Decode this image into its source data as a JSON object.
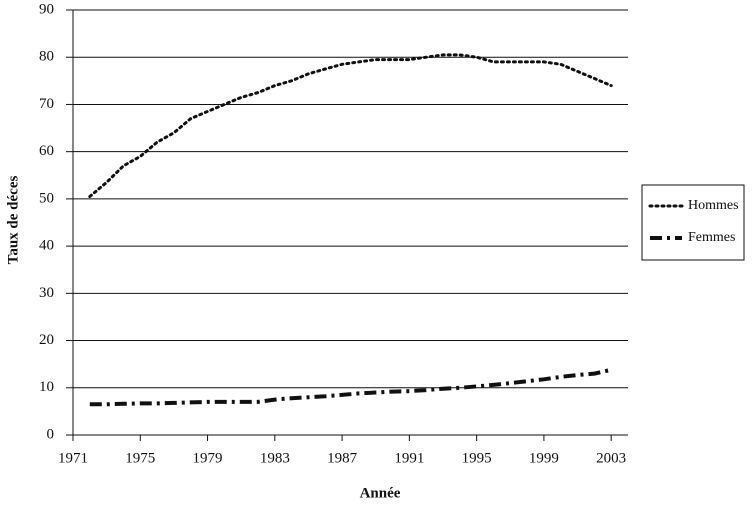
{
  "chart_data": {
    "type": "line",
    "x_label": "Année",
    "y_label": "Taux de déces",
    "x": [
      1972,
      1973,
      1974,
      1975,
      1976,
      1977,
      1978,
      1979,
      1980,
      1981,
      1982,
      1983,
      1984,
      1985,
      1986,
      1987,
      1988,
      1989,
      1990,
      1991,
      1992,
      1993,
      1994,
      1995,
      1996,
      1997,
      1998,
      1999,
      2000,
      2001,
      2002,
      2003
    ],
    "series": [
      {
        "name": "Hommes",
        "color": "#111111",
        "style": "dotted",
        "values": [
          50.5,
          53.5,
          57,
          59,
          62,
          64,
          67,
          68.5,
          70,
          71.5,
          72.5,
          74,
          75,
          76.5,
          77.5,
          78.5,
          79,
          79.5,
          79.5,
          79.5,
          80,
          80.5,
          80.5,
          80,
          79,
          79,
          79,
          79,
          78.5,
          77,
          75.5,
          74
        ]
      },
      {
        "name": "Femmes",
        "color": "#111111",
        "style": "dashdot",
        "values": [
          6.5,
          6.5,
          6.6,
          6.7,
          6.7,
          6.8,
          6.9,
          7,
          7,
          7,
          7,
          7.5,
          7.8,
          8,
          8.2,
          8.5,
          8.8,
          9,
          9.2,
          9.3,
          9.5,
          9.8,
          10,
          10.3,
          10.6,
          11,
          11.4,
          11.8,
          12.3,
          12.7,
          13,
          13.8
        ]
      }
    ],
    "xlim": [
      1971,
      2004
    ],
    "xticks": [
      1971,
      1975,
      1979,
      1983,
      1987,
      1991,
      1995,
      1999,
      2003
    ],
    "ylim": [
      0,
      90
    ],
    "yticks": [
      0,
      10,
      20,
      30,
      40,
      50,
      60,
      70,
      80,
      90
    ],
    "grid": true,
    "legend": "right"
  }
}
